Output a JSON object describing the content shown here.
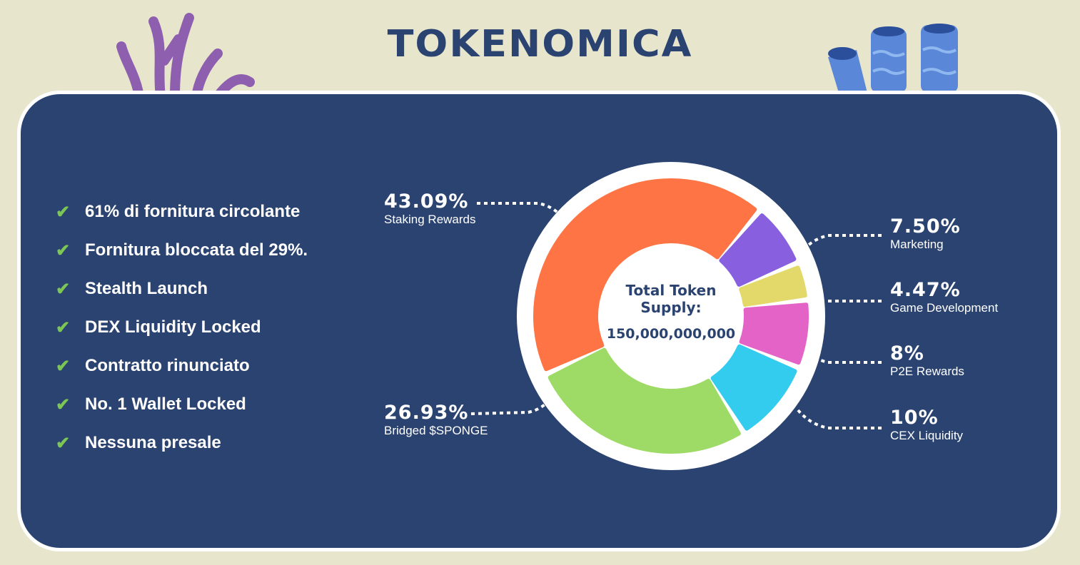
{
  "title": "TOKENOMICA",
  "features": [
    "61% di fornitura circolante",
    "Fornitura bloccata del 29%.",
    "Stealth Launch",
    "DEX Liquidity Locked",
    "Contratto rinunciato",
    "No. 1 Wallet Locked",
    "Nessuna presale"
  ],
  "chart_data": {
    "type": "pie",
    "title": "Total Token Supply:",
    "total": "150,000,000,000",
    "slices": [
      {
        "name": "Staking Rewards",
        "label": "43.09%",
        "value": 43.09,
        "color": "#ff7444"
      },
      {
        "name": "Marketing",
        "label": "7.50%",
        "value": 7.5,
        "color": "#875fdf"
      },
      {
        "name": "Game Development",
        "label": "4.47%",
        "value": 4.47,
        "color": "#e3d96a"
      },
      {
        "name": "P2E Rewards",
        "label": "8%",
        "value": 8,
        "color": "#e463c6"
      },
      {
        "name": "CEX Liquidity",
        "label": "10%",
        "value": 10,
        "color": "#33ccee"
      },
      {
        "name": "Bridged $SPONGE",
        "label": "26.93%",
        "value": 26.93,
        "color": "#9edb66"
      }
    ]
  },
  "colors": {
    "background": "#e8e5cd",
    "card": "#2b4370",
    "check": "#7cc655"
  }
}
